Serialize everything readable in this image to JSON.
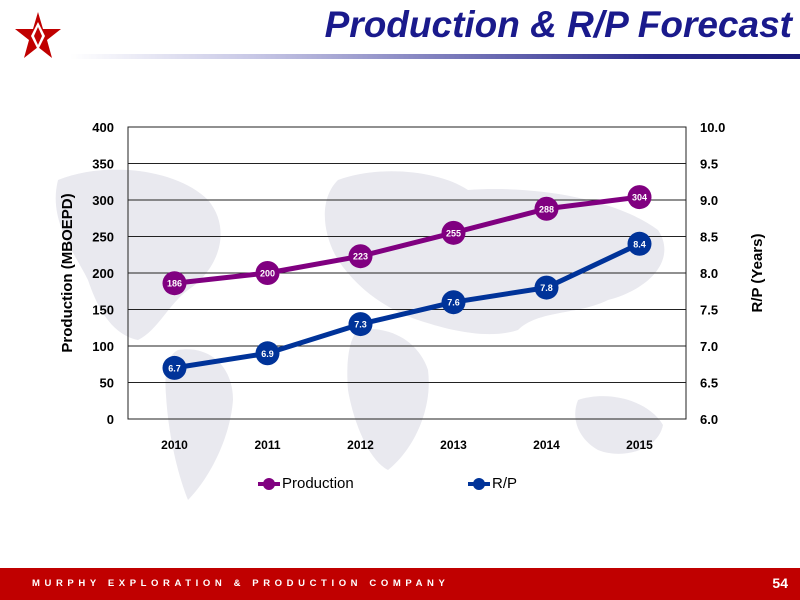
{
  "header": {
    "title": "Production & R/P Forecast",
    "logo_icon": "star-diamond-logo-icon"
  },
  "footer": {
    "company": "MURPHY EXPLORATION & PRODUCTION COMPANY",
    "page_number": "54",
    "color": "#c00000"
  },
  "chart_data": {
    "type": "line",
    "categories": [
      "2010",
      "2011",
      "2012",
      "2013",
      "2014",
      "2015"
    ],
    "ylabel_left": "Production (MBOEPD)",
    "ylabel_right": "R/P (Years)",
    "y_left": {
      "min": 0,
      "max": 400,
      "ticks": [
        "0",
        "50",
        "100",
        "150",
        "200",
        "250",
        "300",
        "350",
        "400"
      ]
    },
    "y_right": {
      "min": 6.0,
      "max": 10.0,
      "ticks": [
        "6.0",
        "6.5",
        "7.0",
        "7.5",
        "8.0",
        "8.5",
        "9.0",
        "9.5",
        "10.0"
      ]
    },
    "grid": true,
    "legend_position": "bottom",
    "series": [
      {
        "name": "Production",
        "axis": "left",
        "color": "#800080",
        "values": [
          186,
          200,
          223,
          255,
          288,
          304
        ],
        "labels": [
          "186",
          "200",
          "223",
          "255",
          "288",
          "304"
        ]
      },
      {
        "name": "R/P",
        "axis": "right",
        "color": "#003399",
        "values": [
          6.7,
          6.9,
          7.3,
          7.6,
          7.8,
          8.4
        ],
        "labels": [
          "6.7",
          "6.9",
          "7.3",
          "7.6",
          "7.8",
          "8.4"
        ]
      }
    ]
  }
}
